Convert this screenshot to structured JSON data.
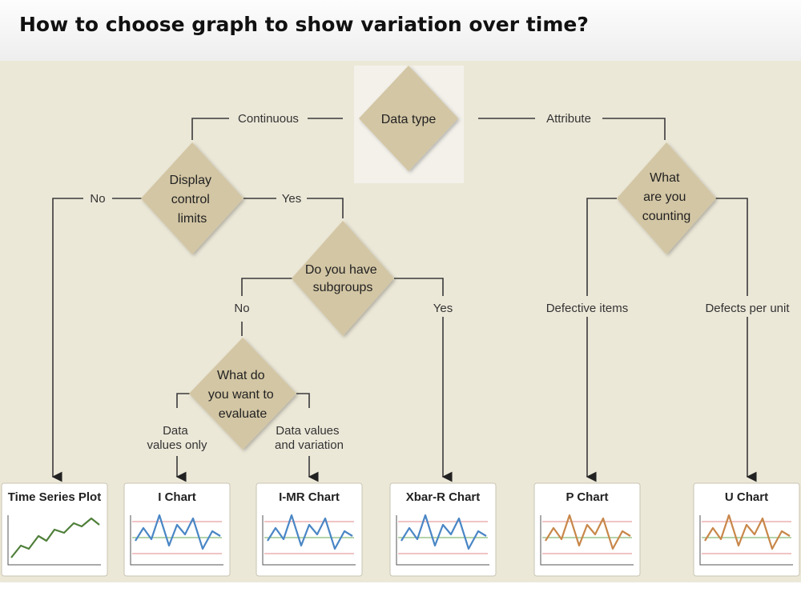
{
  "header": {
    "title": "How to choose graph to show variation over time?"
  },
  "decisions": {
    "data_type": [
      "Data type"
    ],
    "display_control_limits": [
      "Display",
      "control",
      "limits"
    ],
    "subgroups": [
      "Do you have",
      "subgroups"
    ],
    "evaluate": [
      "What do",
      "you want to",
      "evaluate"
    ],
    "counting": [
      "What",
      "are you",
      "counting"
    ]
  },
  "branches": {
    "continuous": "Continuous",
    "attribute": "Attribute",
    "no_limits": "No",
    "yes_limits": "Yes",
    "no_subgroups": "No",
    "yes_subgroups": "Yes",
    "data_values_only": [
      "Data",
      "values only"
    ],
    "data_values_variation": [
      "Data values",
      "and variation"
    ],
    "defective_items": "Defective items",
    "defects_per_unit": "Defects per unit"
  },
  "charts": [
    {
      "title": "Time Series Plot",
      "style": "trend",
      "line_color": "#4f7f3a"
    },
    {
      "title": "I Chart",
      "style": "control",
      "line_color": "#4a86c5"
    },
    {
      "title": "I-MR Chart",
      "style": "control",
      "line_color": "#4a86c5"
    },
    {
      "title": "Xbar-R Chart",
      "style": "control",
      "line_color": "#4a86c5"
    },
    {
      "title": "P Chart",
      "style": "control",
      "line_color": "#c8874a"
    },
    {
      "title": "U Chart",
      "style": "control",
      "line_color": "#c8874a"
    }
  ],
  "colors": {
    "panel": "#ece8d8",
    "diamond": "#d3c6a4",
    "connector": "#3a3a3a",
    "limit_line": "#e08a8a",
    "center_line": "#6aaa55"
  }
}
